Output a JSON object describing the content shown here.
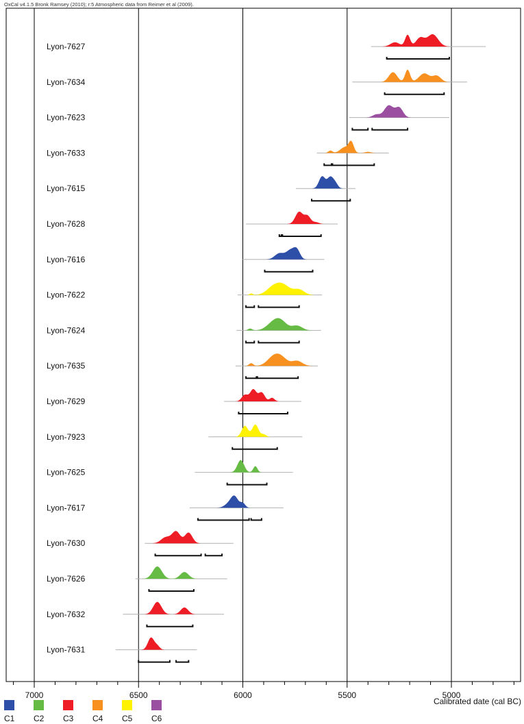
{
  "credit": "OxCal v4.1.5 Bronk Ramsey (2010); r:5 Atmospheric data from Reimer et al (2009).",
  "colors": {
    "C1": "#2e4fa8",
    "C2": "#66bb44",
    "C3": "#ee1c24",
    "C4": "#f7901e",
    "C5": "#fff200",
    "C6": "#9b4fa0",
    "axis": "#000000",
    "gridline": "#000000",
    "range_line": "#b0b0b0"
  },
  "legend": [
    {
      "key": "C1",
      "label": "C1"
    },
    {
      "key": "C2",
      "label": "C2"
    },
    {
      "key": "C3",
      "label": "C3"
    },
    {
      "key": "C4",
      "label": "C4"
    },
    {
      "key": "C5",
      "label": "C5"
    },
    {
      "key": "C6",
      "label": "C6"
    }
  ],
  "chart_data": {
    "type": "area",
    "title": "",
    "xlabel": "Calibrated date (cal BC)",
    "xlim": [
      7140,
      4665
    ],
    "x_reversed": true,
    "xticks": [
      7000,
      6500,
      6000,
      5500,
      5000
    ],
    "grid": "vertical lines at major ticks",
    "legend_position": "bottom-left",
    "samples": [
      {
        "name": "Lyon-7627",
        "group": "C3",
        "range": [
          5385,
          4835
        ],
        "peaks": [
          [
            5270,
            0.35,
            22
          ],
          [
            5210,
            0.95,
            12
          ],
          [
            5150,
            0.7,
            20
          ],
          [
            5090,
            1.0,
            26
          ]
        ],
        "hpd": [
          [
            5310,
            5010
          ]
        ]
      },
      {
        "name": "Lyon-7634",
        "group": "C4",
        "range": [
          5475,
          4925
        ],
        "peaks": [
          [
            5280,
            0.8,
            20
          ],
          [
            5210,
            1.0,
            12
          ],
          [
            5130,
            0.7,
            25
          ],
          [
            5070,
            0.5,
            20
          ]
        ],
        "hpd": [
          [
            5320,
            5035
          ]
        ]
      },
      {
        "name": "Lyon-7623",
        "group": "C6",
        "range": [
          5490,
          5010
        ],
        "peaks": [
          [
            5360,
            0.25,
            18
          ],
          [
            5300,
            1.0,
            22
          ],
          [
            5250,
            0.8,
            18
          ]
        ],
        "hpd": [
          [
            5475,
            5400
          ],
          [
            5380,
            5210
          ]
        ]
      },
      {
        "name": "Lyon-7633",
        "group": "C4",
        "range": [
          5645,
          5300
        ],
        "peaks": [
          [
            5580,
            0.25,
            10
          ],
          [
            5510,
            0.6,
            22
          ],
          [
            5480,
            1.0,
            12
          ],
          [
            5400,
            0.12,
            15
          ]
        ],
        "hpd": [
          [
            5610,
            5575
          ],
          [
            5570,
            5370
          ]
        ]
      },
      {
        "name": "Lyon-7615",
        "group": "C1",
        "range": [
          5745,
          5460
        ],
        "peaks": [
          [
            5620,
            1.0,
            15
          ],
          [
            5580,
            0.95,
            15
          ],
          [
            5555,
            0.35,
            12
          ]
        ],
        "hpd": [
          [
            5670,
            5485
          ]
        ]
      },
      {
        "name": "Lyon-7628",
        "group": "C3",
        "range": [
          5985,
          5545
        ],
        "peaks": [
          [
            5730,
            1.0,
            18
          ],
          [
            5690,
            0.65,
            15
          ],
          [
            5650,
            0.15,
            15
          ]
        ],
        "hpd": [
          [
            5825,
            5815
          ],
          [
            5810,
            5625
          ]
        ]
      },
      {
        "name": "Lyon-7616",
        "group": "C1",
        "range": [
          6005,
          5610
        ],
        "peaks": [
          [
            5825,
            0.55,
            22
          ],
          [
            5770,
            0.85,
            22
          ],
          [
            5740,
            0.7,
            15
          ]
        ],
        "hpd": [
          [
            5895,
            5665
          ]
        ]
      },
      {
        "name": "Lyon-7622",
        "group": "C5",
        "range": [
          6025,
          5620
        ],
        "peaks": [
          [
            5960,
            0.15,
            8
          ],
          [
            5860,
            0.55,
            30
          ],
          [
            5810,
            1.0,
            35
          ],
          [
            5730,
            0.5,
            25
          ]
        ],
        "hpd": [
          [
            5985,
            5945
          ],
          [
            5925,
            5730
          ]
        ]
      },
      {
        "name": "Lyon-7624",
        "group": "C2",
        "range": [
          6030,
          5625
        ],
        "peaks": [
          [
            5965,
            0.2,
            10
          ],
          [
            5860,
            0.6,
            30
          ],
          [
            5820,
            1.0,
            30
          ],
          [
            5740,
            0.5,
            25
          ]
        ],
        "hpd": [
          [
            5985,
            5945
          ],
          [
            5925,
            5730
          ]
        ]
      },
      {
        "name": "Lyon-7635",
        "group": "C4",
        "range": [
          6035,
          5640
        ],
        "peaks": [
          [
            5960,
            0.3,
            10
          ],
          [
            5860,
            0.7,
            28
          ],
          [
            5820,
            1.0,
            30
          ],
          [
            5740,
            0.55,
            25
          ]
        ],
        "hpd": [
          [
            5985,
            5935
          ],
          [
            5930,
            5735
          ]
        ]
      },
      {
        "name": "Lyon-7629",
        "group": "C3",
        "range": [
          6090,
          5720
        ],
        "peaks": [
          [
            5990,
            0.55,
            15
          ],
          [
            5950,
            1.0,
            15
          ],
          [
            5910,
            0.75,
            15
          ],
          [
            5860,
            0.3,
            12
          ]
        ],
        "hpd": [
          [
            6020,
            5785
          ]
        ]
      },
      {
        "name": "Lyon-7923",
        "group": "C5",
        "range": [
          6165,
          5715
        ],
        "peaks": [
          [
            5990,
            0.9,
            15
          ],
          [
            5940,
            1.0,
            15
          ],
          [
            5900,
            0.2,
            12
          ]
        ],
        "hpd": [
          [
            6050,
            5835
          ]
        ]
      },
      {
        "name": "Lyon-7625",
        "group": "C2",
        "range": [
          6230,
          5760
        ],
        "peaks": [
          [
            6010,
            1.0,
            16
          ],
          [
            5940,
            0.5,
            10
          ]
        ],
        "hpd": [
          [
            6075,
            5885
          ]
        ]
      },
      {
        "name": "Lyon-7617",
        "group": "C1",
        "range": [
          6255,
          5805
        ],
        "peaks": [
          [
            6070,
            0.3,
            20
          ],
          [
            6040,
            1.0,
            18
          ],
          [
            6000,
            0.4,
            12
          ]
        ],
        "hpd": [
          [
            6215,
            5970
          ],
          [
            5960,
            5910
          ]
        ]
      },
      {
        "name": "Lyon-7630",
        "group": "C3",
        "range": [
          6470,
          6045
        ],
        "peaks": [
          [
            6370,
            0.5,
            22
          ],
          [
            6320,
            1.0,
            20
          ],
          [
            6260,
            0.9,
            18
          ]
        ],
        "hpd": [
          [
            6420,
            6200
          ],
          [
            6180,
            6100
          ]
        ]
      },
      {
        "name": "Lyon-7626",
        "group": "C2",
        "range": [
          6515,
          6075
        ],
        "peaks": [
          [
            6410,
            1.0,
            22
          ],
          [
            6280,
            0.55,
            20
          ]
        ],
        "hpd": [
          [
            6450,
            6235
          ]
        ]
      },
      {
        "name": "Lyon-7632",
        "group": "C3",
        "range": [
          6575,
          6090
        ],
        "peaks": [
          [
            6410,
            1.0,
            20
          ],
          [
            6280,
            0.55,
            18
          ]
        ],
        "hpd": [
          [
            6460,
            6240
          ]
        ]
      },
      {
        "name": "Lyon-7631",
        "group": "C3",
        "range": [
          6610,
          6220
        ],
        "peaks": [
          [
            6440,
            1.0,
            15
          ],
          [
            6410,
            0.3,
            12
          ]
        ],
        "hpd": [
          [
            6500,
            6350
          ],
          [
            6320,
            6260
          ]
        ]
      }
    ]
  }
}
